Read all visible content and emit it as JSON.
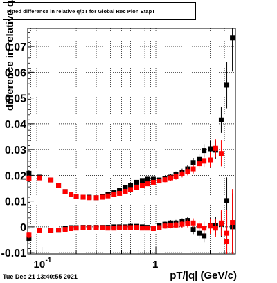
{
  "title": "Fitted difference in relative q/pT for Global Rec Pion EtapT",
  "footer": "Tue Dec 21 13:40:55 2021",
  "chart_data": {
    "type": "scatter",
    "title": "Fitted difference in relative q/pT for Global Rec Pion EtapT",
    "xlabel": "pT/|q| (GeV/c)",
    "ylabel": "difference in relative q/pT",
    "xscale": "log",
    "xlim": [
      0.075,
      5.0
    ],
    "ylim": [
      -0.0105,
      0.077
    ],
    "xticklabels": [
      "10^-1",
      "1"
    ],
    "yticks": [
      -0.01,
      0,
      0.01,
      0.02,
      0.03,
      0.04,
      0.05,
      0.06,
      0.07
    ],
    "yticklabels": [
      "-0.01",
      "0",
      "0.01",
      "0.02",
      "0.03",
      "0.04",
      "0.05",
      "0.06",
      "0.07"
    ],
    "grid": true,
    "series": [
      {
        "color": "#000000",
        "points": [
          [
            0.077,
            0.0208,
            0.0012
          ],
          [
            0.095,
            0.0193,
            0.0007
          ],
          [
            0.12,
            0.0182,
            0.0006
          ],
          [
            0.14,
            0.016,
            0.0005
          ],
          [
            0.16,
            0.0137,
            0.0005
          ],
          [
            0.18,
            0.0126,
            0.0005
          ],
          [
            0.2,
            0.0118,
            0.0004
          ],
          [
            0.23,
            0.0115,
            0.0004
          ],
          [
            0.26,
            0.0115,
            0.0004
          ],
          [
            0.3,
            0.0113,
            0.0004
          ],
          [
            0.34,
            0.0118,
            0.0004
          ],
          [
            0.38,
            0.0125,
            0.0005
          ],
          [
            0.43,
            0.0135,
            0.0005
          ],
          [
            0.48,
            0.0143,
            0.0005
          ],
          [
            0.54,
            0.0152,
            0.0006
          ],
          [
            0.6,
            0.0162,
            0.0006
          ],
          [
            0.68,
            0.0173,
            0.0007
          ],
          [
            0.76,
            0.018,
            0.0007
          ],
          [
            0.85,
            0.0185,
            0.0008
          ],
          [
            0.95,
            0.0185,
            0.0008
          ],
          [
            1.07,
            0.0182,
            0.0009
          ],
          [
            1.2,
            0.0187,
            0.001
          ],
          [
            1.35,
            0.0193,
            0.0011
          ],
          [
            1.5,
            0.0203,
            0.0012
          ],
          [
            1.7,
            0.0213,
            0.0013
          ],
          [
            1.9,
            0.0225,
            0.0015
          ],
          [
            2.13,
            0.025,
            0.0018
          ],
          [
            2.4,
            0.0262,
            0.002
          ],
          [
            2.65,
            0.0296,
            0.0025
          ],
          [
            3.0,
            0.0303,
            0.003
          ],
          [
            3.35,
            0.0298,
            0.0035
          ],
          [
            3.75,
            0.0415,
            0.005
          ],
          [
            4.2,
            0.055,
            0.009
          ],
          [
            4.7,
            0.0733,
            0.013
          ],
          [
            0.077,
            -0.0045,
            0.0012
          ],
          [
            0.095,
            -0.0013,
            0.0007
          ],
          [
            0.12,
            -0.0015,
            0.0006
          ],
          [
            0.14,
            -0.0013,
            0.0005
          ],
          [
            0.16,
            -0.0007,
            0.0005
          ],
          [
            0.18,
            -0.0003,
            0.0005
          ],
          [
            0.2,
            -0.0003,
            0.0004
          ],
          [
            0.23,
            -0.0002,
            0.0004
          ],
          [
            0.26,
            -0.0002,
            0.0004
          ],
          [
            0.3,
            -0.0002,
            0.0004
          ],
          [
            0.34,
            -0.0002,
            0.0004
          ],
          [
            0.38,
            -0.0002,
            0.0005
          ],
          [
            0.43,
            0.0,
            0.0005
          ],
          [
            0.48,
            0.0,
            0.0005
          ],
          [
            0.54,
            0.0,
            0.0006
          ],
          [
            0.6,
            0.0002,
            0.0006
          ],
          [
            0.68,
            0.0002,
            0.0007
          ],
          [
            0.76,
            0.0,
            0.0007
          ],
          [
            0.85,
            -0.0002,
            0.0008
          ],
          [
            0.95,
            -0.0005,
            0.0008
          ],
          [
            1.07,
            0.0005,
            0.0009
          ],
          [
            1.2,
            0.001,
            0.001
          ],
          [
            1.35,
            0.0015,
            0.0011
          ],
          [
            1.5,
            0.0015,
            0.0012
          ],
          [
            1.7,
            0.002,
            0.0013
          ],
          [
            1.9,
            0.0025,
            0.0015
          ],
          [
            2.13,
            -0.001,
            0.0018
          ],
          [
            2.4,
            -0.0025,
            0.002
          ],
          [
            2.65,
            -0.0035,
            0.0025
          ],
          [
            3.0,
            0.0005,
            0.003
          ],
          [
            3.35,
            0.0005,
            0.0035
          ],
          [
            3.75,
            0.001,
            0.005
          ],
          [
            4.2,
            0.0102,
            0.009
          ],
          [
            4.7,
            0.0,
            0.013
          ]
        ]
      },
      {
        "color": "#ff0000",
        "points": [
          [
            0.077,
            0.0188,
            0.0012
          ],
          [
            0.095,
            0.019,
            0.0007
          ],
          [
            0.12,
            0.0182,
            0.0006
          ],
          [
            0.14,
            0.0162,
            0.0005
          ],
          [
            0.16,
            0.0137,
            0.0005
          ],
          [
            0.18,
            0.0126,
            0.0005
          ],
          [
            0.2,
            0.0118,
            0.0004
          ],
          [
            0.23,
            0.0115,
            0.0004
          ],
          [
            0.26,
            0.0113,
            0.0004
          ],
          [
            0.3,
            0.0113,
            0.0004
          ],
          [
            0.34,
            0.0115,
            0.0004
          ],
          [
            0.38,
            0.012,
            0.0005
          ],
          [
            0.43,
            0.0125,
            0.0005
          ],
          [
            0.48,
            0.013,
            0.0005
          ],
          [
            0.54,
            0.0138,
            0.0006
          ],
          [
            0.6,
            0.0145,
            0.0006
          ],
          [
            0.68,
            0.0153,
            0.0007
          ],
          [
            0.76,
            0.016,
            0.0007
          ],
          [
            0.85,
            0.0167,
            0.0008
          ],
          [
            0.95,
            0.0173,
            0.0008
          ],
          [
            1.07,
            0.0178,
            0.0009
          ],
          [
            1.2,
            0.0183,
            0.001
          ],
          [
            1.35,
            0.019,
            0.0011
          ],
          [
            1.5,
            0.0195,
            0.0012
          ],
          [
            1.7,
            0.0205,
            0.0013
          ],
          [
            1.9,
            0.0215,
            0.0015
          ],
          [
            2.13,
            0.0225,
            0.0018
          ],
          [
            2.4,
            0.0245,
            0.002
          ],
          [
            2.65,
            0.0255,
            0.0025
          ],
          [
            3.0,
            0.026,
            0.003
          ],
          [
            3.35,
            0.0305,
            0.0035
          ],
          [
            3.75,
            0.0285,
            0.005
          ],
          [
            4.2,
            -0.0025,
            0.009
          ],
          [
            0.077,
            -0.0032,
            0.0012
          ],
          [
            0.095,
            -0.0015,
            0.0007
          ],
          [
            0.12,
            -0.0015,
            0.0006
          ],
          [
            0.14,
            -0.0013,
            0.0005
          ],
          [
            0.16,
            -0.001,
            0.0005
          ],
          [
            0.18,
            -0.0007,
            0.0005
          ],
          [
            0.2,
            -0.0005,
            0.0004
          ],
          [
            0.23,
            -0.0003,
            0.0004
          ],
          [
            0.26,
            -0.0003,
            0.0004
          ],
          [
            0.3,
            -0.0003,
            0.0004
          ],
          [
            0.34,
            -0.0003,
            0.0004
          ],
          [
            0.38,
            -0.0005,
            0.0005
          ],
          [
            0.43,
            -0.0005,
            0.0005
          ],
          [
            0.48,
            -0.0003,
            0.0005
          ],
          [
            0.54,
            -0.0003,
            0.0006
          ],
          [
            0.6,
            -0.0003,
            0.0006
          ],
          [
            0.68,
            -0.0002,
            0.0007
          ],
          [
            0.76,
            -0.0005,
            0.0007
          ],
          [
            0.85,
            -0.0005,
            0.0008
          ],
          [
            0.95,
            -0.0007,
            0.0008
          ],
          [
            1.07,
            -0.0003,
            0.0009
          ],
          [
            1.2,
            0.0003,
            0.001
          ],
          [
            1.35,
            0.0005,
            0.0011
          ],
          [
            1.5,
            0.0007,
            0.0012
          ],
          [
            1.7,
            0.001,
            0.0013
          ],
          [
            1.9,
            0.0013,
            0.0015
          ],
          [
            2.13,
            0.0015,
            0.0018
          ],
          [
            2.4,
            0.0003,
            0.002
          ],
          [
            2.65,
            -0.0005,
            0.0025
          ],
          [
            3.0,
            0.0003,
            0.003
          ],
          [
            3.35,
            -0.0005,
            0.0035
          ],
          [
            3.75,
            0.0015,
            0.005
          ],
          [
            4.2,
            -0.0057,
            0.009
          ],
          [
            4.7,
            0.0017,
            0.013
          ]
        ]
      }
    ]
  }
}
